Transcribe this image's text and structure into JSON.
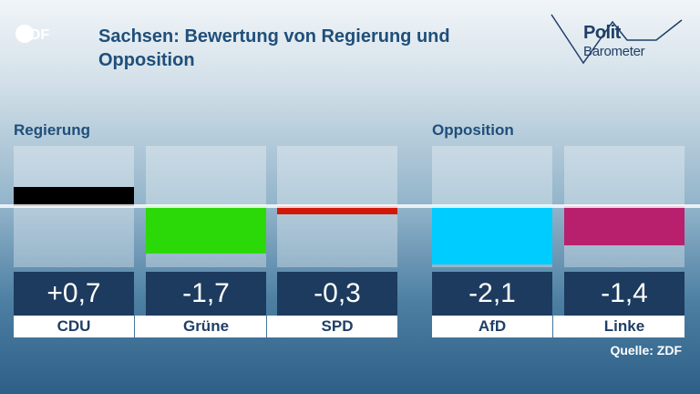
{
  "header": {
    "title_line1": "Sachsen: Bewertung von Regierung und",
    "title_line2": "Opposition",
    "brand_logo": "ZDF",
    "program_logo_line1": "Polit",
    "program_logo_line2": "Barometer"
  },
  "groups": {
    "government": "Regierung",
    "opposition": "Opposition"
  },
  "chart_data": {
    "type": "bar",
    "categories": [
      "CDU",
      "Grüne",
      "SPD",
      "AfD",
      "Linke"
    ],
    "values": [
      0.7,
      -1.7,
      -0.3,
      -2.1,
      -1.4
    ],
    "value_labels": [
      "+0,7",
      "-1,7",
      "-0,3",
      "-2,1",
      "-1,4"
    ],
    "colors": [
      "#000000",
      "#2bd908",
      "#d11808",
      "#00ccff",
      "#b8206e"
    ],
    "ylim": [
      -2.2,
      2.2
    ]
  },
  "source": "Quelle: ZDF"
}
